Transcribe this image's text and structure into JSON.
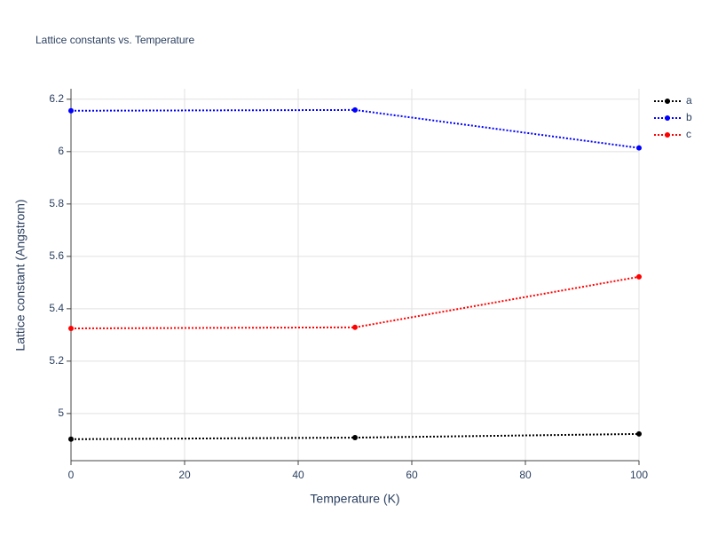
{
  "chart_data": {
    "type": "line",
    "title": "Lattice constants vs. Temperature",
    "x_label": "Temperature (K)",
    "y_label": "Lattice constant (Angstrom)",
    "x": [
      0,
      50,
      100
    ],
    "series": [
      {
        "name": "a",
        "color": "#000000",
        "values": [
          4.902,
          4.908,
          4.922
        ]
      },
      {
        "name": "b",
        "color": "#0000ff",
        "values": [
          6.156,
          6.159,
          6.014
        ]
      },
      {
        "name": "c",
        "color": "#ff0000",
        "values": [
          5.325,
          5.329,
          5.522
        ]
      }
    ],
    "xlim": [
      0,
      100
    ],
    "xticks": [
      0,
      20,
      40,
      60,
      80,
      100
    ],
    "ylim": [
      4.82,
      6.24
    ],
    "yticks": [
      5,
      5.2,
      5.4,
      5.6,
      5.8,
      6,
      6.2
    ],
    "grid": true,
    "line_style": "dotted",
    "legend": "right"
  }
}
